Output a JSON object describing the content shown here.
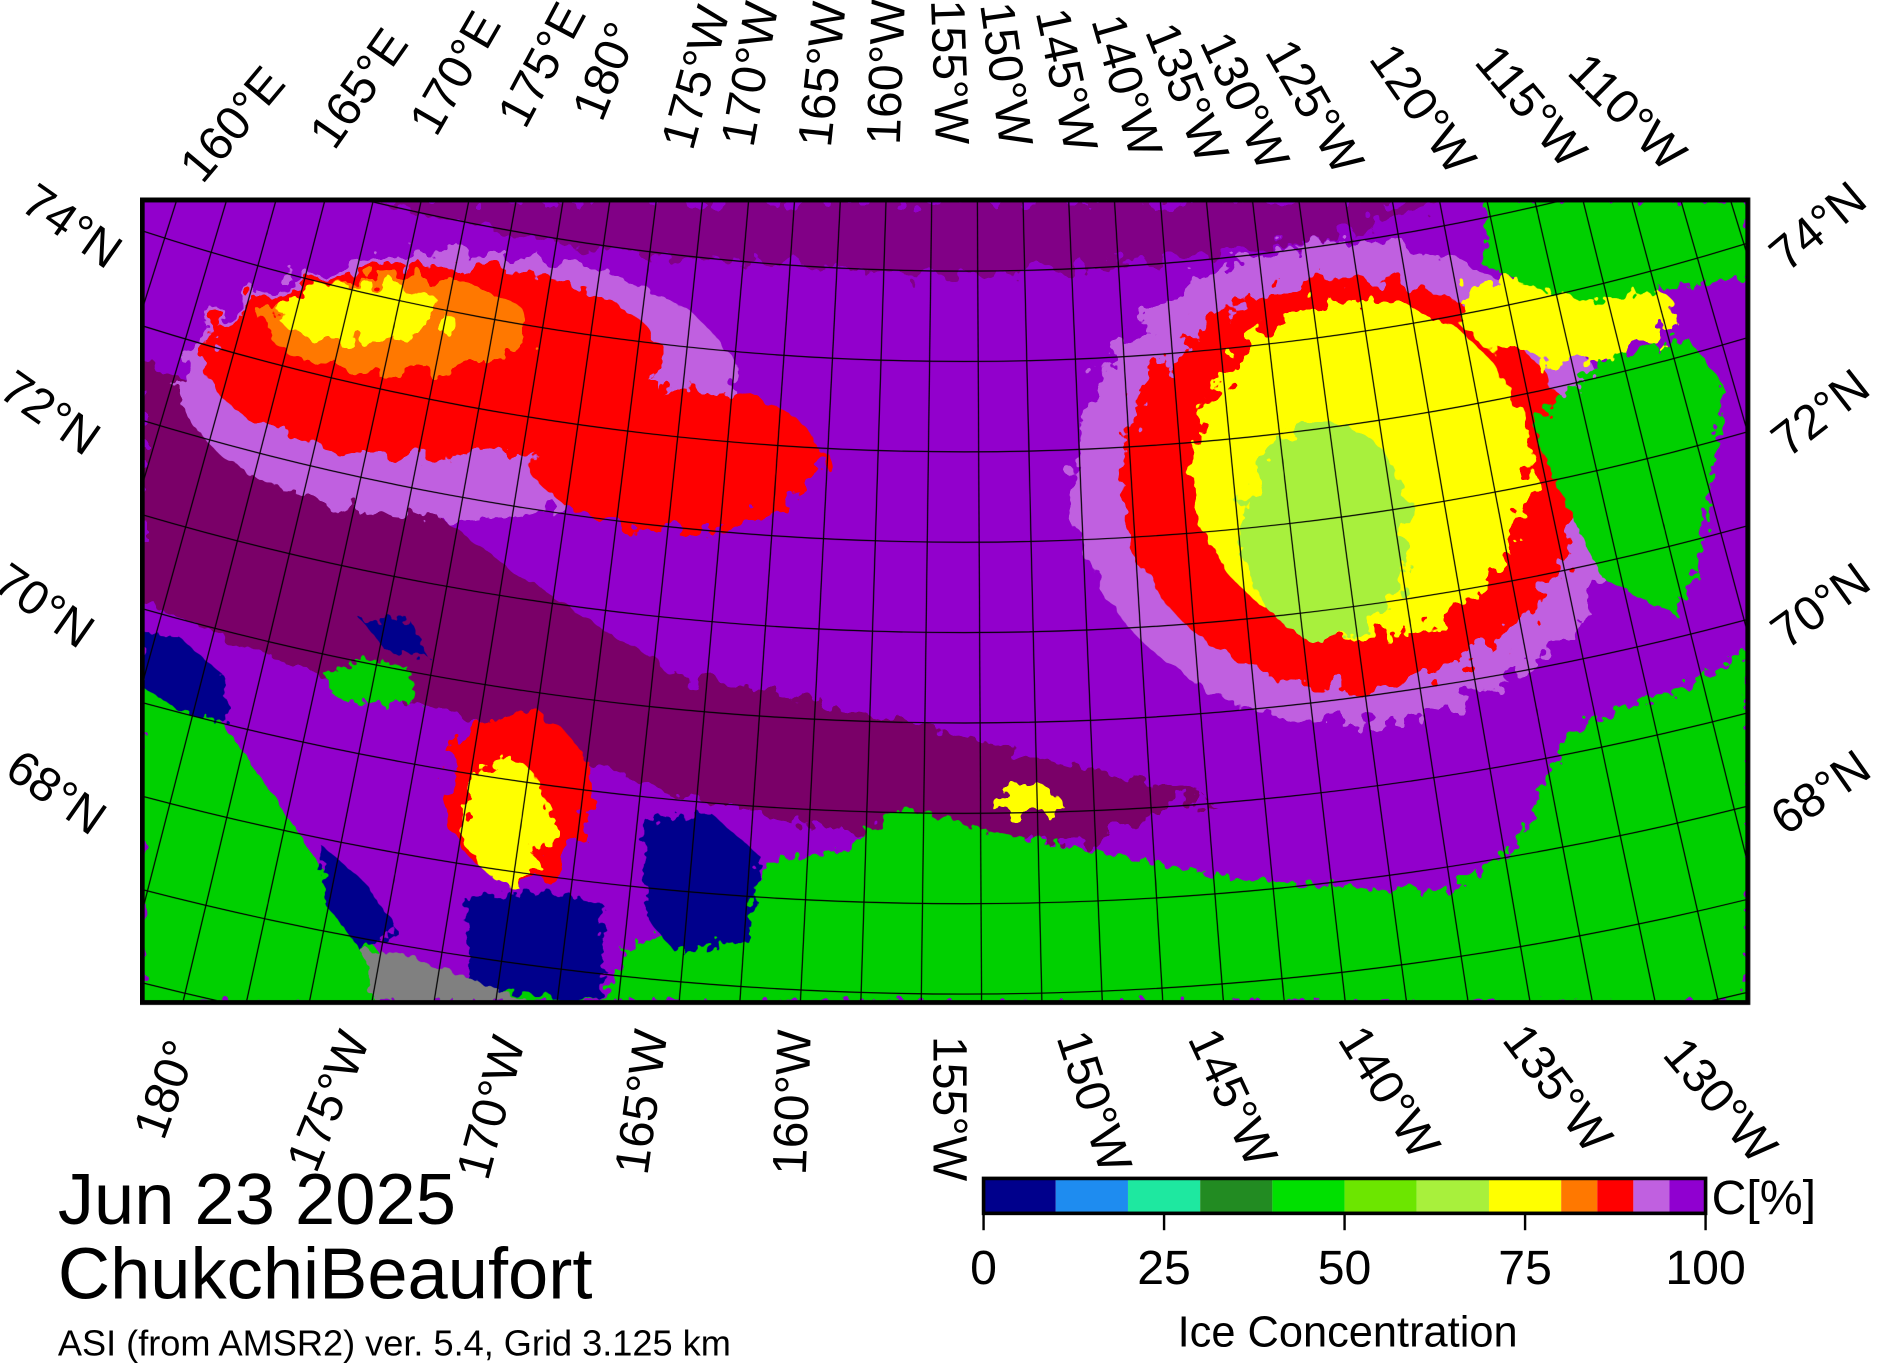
{
  "map": {
    "top_longitude_labels": [
      "160°E",
      "165°E",
      "170°E",
      "175°E",
      "180°",
      "175°W",
      "170°W",
      "165°W",
      "160°W",
      "155°W",
      "150°W",
      "145°W",
      "140°W",
      "135°W",
      "130°W",
      "125°W",
      "120°W",
      "115°W",
      "110°W"
    ],
    "bottom_longitude_labels": [
      "180°",
      "175°W",
      "170°W",
      "165°W",
      "160°W",
      "155°W",
      "150°W",
      "145°W",
      "140°W",
      "135°W",
      "130°W"
    ],
    "left_latitude_labels": [
      "74°N",
      "72°N",
      "70°N",
      "68°N"
    ],
    "right_latitude_labels": [
      "74°N",
      "72°N",
      "70°N",
      "68°N"
    ]
  },
  "info": {
    "date": "Jun 23 2025",
    "region": "ChukchiBeaufort",
    "source": "ASI (from AMSR2) ver. 5.4,  Grid 3.125 km"
  },
  "colorbar": {
    "label": "Ice Concentration",
    "unit": "C[%]",
    "range": [
      0,
      100
    ],
    "ticks": [
      0,
      25,
      50,
      75,
      100
    ],
    "bounds": [
      0,
      10,
      20,
      30,
      40,
      50,
      60,
      70,
      80,
      85,
      90,
      95,
      100
    ],
    "colors": [
      "#00008c",
      "#1e8cf0",
      "#1ee8a0",
      "#228b22",
      "#00e000",
      "#6ce600",
      "#a8f03c",
      "#ffff00",
      "#ff7800",
      "#ff0000",
      "#c060e0",
      "#9000d0"
    ]
  }
}
